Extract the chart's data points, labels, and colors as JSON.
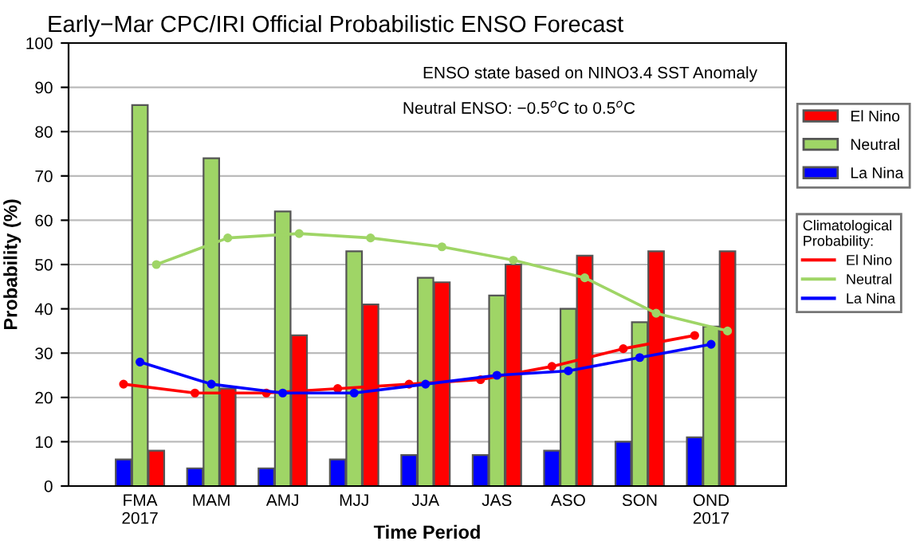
{
  "chart_data": {
    "type": "bar",
    "title": "Early−Mar CPC/IRI Official Probabilistic ENSO Forecast",
    "xlabel": "Time Period",
    "ylabel": "Probability (%)",
    "categories": [
      "FMA\n2017",
      "MAM",
      "AMJ",
      "MJJ",
      "JJA",
      "JAS",
      "ASO",
      "SON",
      "OND\n2017"
    ],
    "series": [
      {
        "name": "La Nina",
        "color": "#0000ff",
        "values": [
          6,
          4,
          4,
          6,
          7,
          7,
          8,
          10,
          11
        ]
      },
      {
        "name": "Neutral",
        "color": "#9fd566",
        "values": [
          86,
          74,
          62,
          53,
          47,
          43,
          40,
          37,
          36
        ]
      },
      {
        "name": "El Nino",
        "color": "#ff0000",
        "values": [
          8,
          22,
          34,
          41,
          46,
          50,
          52,
          53,
          53
        ]
      },
      {
        "name": "El Nino",
        "type": "line",
        "color": "#ff0000",
        "values": [
          23,
          21,
          21,
          22,
          23,
          24,
          27,
          31,
          34
        ]
      },
      {
        "name": "Neutral",
        "type": "line",
        "color": "#9fd566",
        "values": [
          50,
          56,
          57,
          56,
          54,
          51,
          47,
          39,
          35
        ]
      },
      {
        "name": "La Nina",
        "type": "line",
        "color": "#0000ff",
        "values": [
          28,
          23,
          21,
          21,
          23,
          25,
          26,
          29,
          32
        ]
      }
    ],
    "legend_title": "Climatological\nProbability:",
    "annotations": [
      "ENSO state based on NINO3.4 SST Anomaly",
      "Neutral ENSO: −0.5$^{o}$C to 0.5$^{o}$C"
    ],
    "ylim": [
      0,
      100
    ],
    "yticks": [
      0,
      10,
      20,
      30,
      40,
      50,
      60,
      70,
      80,
      90,
      100
    ],
    "grid": "y",
    "legend": "right",
    "marker": "circle",
    "line_style": "solid"
  }
}
